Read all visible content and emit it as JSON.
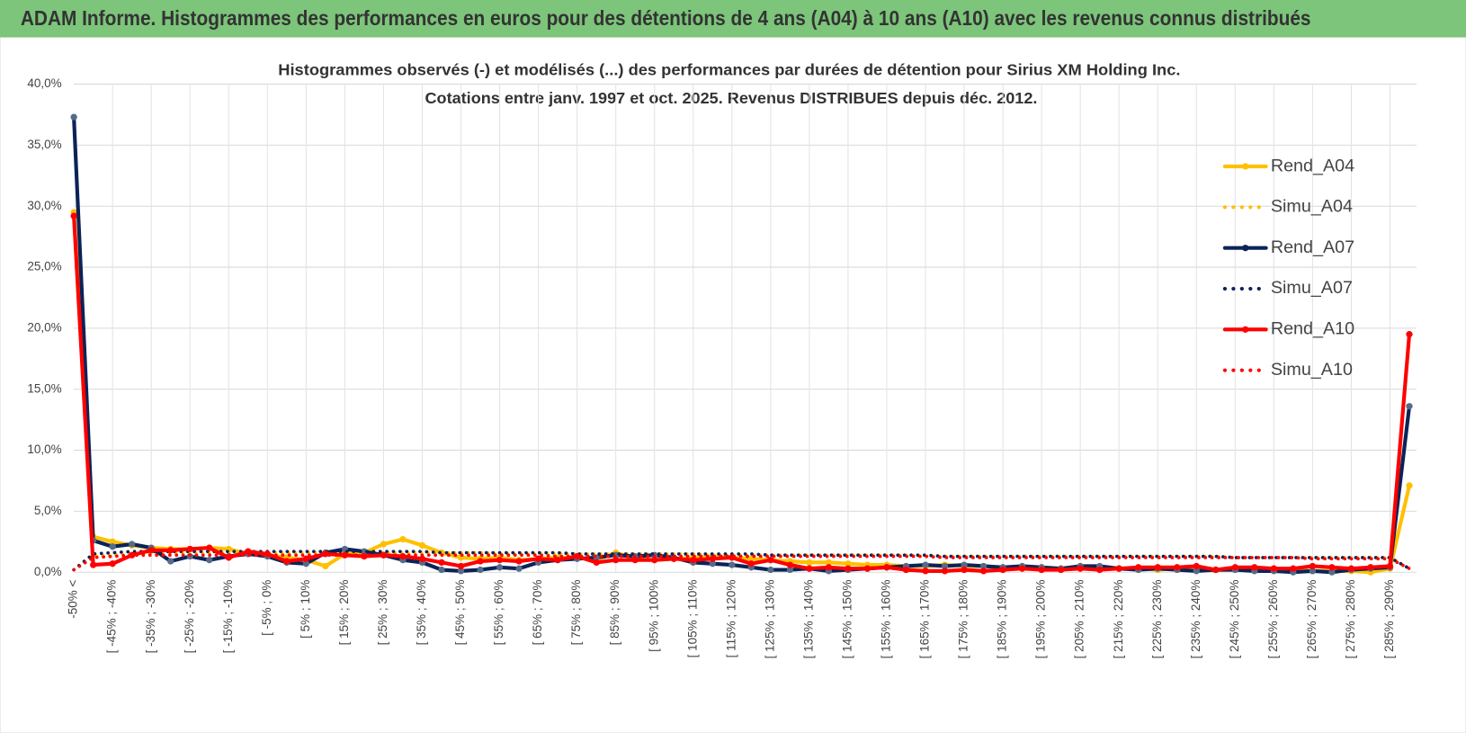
{
  "header": "ADAM Informe. Histogrammes des performances en euros pour des détentions de 4 ans (A04) à 10 ans (A10) avec les revenus connus distribués",
  "chart_data": {
    "type": "line",
    "title": "Histogrammes observés (-) et modélisés (...) des performances par durées de détention pour Sirius XM Holding Inc.",
    "subtitle": "Cotations entre janv. 1997 et oct. 2025.  Revenus DISTRIBUES depuis déc. 2012.",
    "categories": [
      "-50% <",
      null,
      "[ -45% ; -40%",
      null,
      "[ -35% ; -30%",
      null,
      "[ -25% ; -20%",
      null,
      "[ -15% ; -10%",
      null,
      "[ -5% ; 0%",
      null,
      "[ 5% ; 10%",
      null,
      "[ 15% ; 20%",
      null,
      "[ 25% ; 30%",
      null,
      "[ 35% ; 40%",
      null,
      "[ 45% ; 50%",
      null,
      "[ 55% ; 60%",
      null,
      "[ 65% ; 70%",
      null,
      "[ 75% ; 80%",
      null,
      "[ 85% ; 90%",
      null,
      "[ 95% ; 100%",
      null,
      "[ 105% ; 110%",
      null,
      "[ 115% ; 120%",
      null,
      "[ 125% ; 130%",
      null,
      "[ 135% ; 140%",
      null,
      "[ 145% ; 150%",
      null,
      "[ 155% ; 160%",
      null,
      "[ 165% ; 170%",
      null,
      "[ 175% ; 180%",
      null,
      "[ 185% ; 190%",
      null,
      "[ 195% ; 200%",
      null,
      "[ 205% ; 210%",
      null,
      "[ 215% ; 220%",
      null,
      "[ 225% ; 230%",
      null,
      "[ 235% ; 240%",
      null,
      "[ 245% ; 250%",
      null,
      "[ 255% ; 260%",
      null,
      "[ 265% ; 270%",
      null,
      "[ 275% ; 280%",
      null,
      "[ 285% ; 290%",
      null
    ],
    "ylim": [
      0,
      40
    ],
    "yticks": [
      {
        "value": 0,
        "label": "0,0%"
      },
      {
        "value": 5,
        "label": "5,0%"
      },
      {
        "value": 10,
        "label": "10,0%"
      },
      {
        "value": 15,
        "label": "15,0%"
      },
      {
        "value": 20,
        "label": "20,0%"
      },
      {
        "value": 25,
        "label": "25,0%"
      },
      {
        "value": 30,
        "label": "30,0%"
      },
      {
        "value": 35,
        "label": "35,0%"
      },
      {
        "value": 40,
        "label": "40,0%"
      }
    ],
    "grid": true,
    "legend": "right",
    "series": [
      {
        "name": "Rend_A04",
        "color": "#ffc000",
        "style": "solid",
        "marker": true,
        "values": [
          29.5,
          2.9,
          2.5,
          2.2,
          2.0,
          1.9,
          1.9,
          2.0,
          1.9,
          1.5,
          1.4,
          1.2,
          1.0,
          0.5,
          1.5,
          1.6,
          2.3,
          2.7,
          2.2,
          1.6,
          1.2,
          1.1,
          1.2,
          1.0,
          1.1,
          1.2,
          1.2,
          1.0,
          1.6,
          1.1,
          1.0,
          1.1,
          1.2,
          1.3,
          1.2,
          1.1,
          1.0,
          0.9,
          0.8,
          0.8,
          0.7,
          0.6,
          0.6,
          0.5,
          0.5,
          0.6,
          0.5,
          0.5,
          0.4,
          0.4,
          0.4,
          0.3,
          0.4,
          0.4,
          0.3,
          0.3,
          0.2,
          0.3,
          0.3,
          0.2,
          0.2,
          0.2,
          0.3,
          0.2,
          0.1,
          0.1,
          0.1,
          0.0,
          0.3,
          7.1
        ]
      },
      {
        "name": "Simu_A04",
        "color": "#ffc000",
        "style": "dotted",
        "marker": false,
        "values": [
          0.2,
          1.3,
          1.4,
          1.5,
          1.6,
          1.6,
          1.6,
          1.6,
          1.6,
          1.6,
          1.6,
          1.6,
          1.6,
          1.6,
          1.6,
          1.6,
          1.6,
          1.6,
          1.6,
          1.6,
          1.6,
          1.6,
          1.5,
          1.5,
          1.5,
          1.5,
          1.5,
          1.5,
          1.5,
          1.5,
          1.5,
          1.5,
          1.5,
          1.4,
          1.4,
          1.4,
          1.4,
          1.4,
          1.4,
          1.4,
          1.4,
          1.4,
          1.4,
          1.4,
          1.3,
          1.3,
          1.3,
          1.3,
          1.3,
          1.3,
          1.3,
          1.3,
          1.3,
          1.3,
          1.3,
          1.3,
          1.3,
          1.3,
          1.3,
          1.3,
          1.2,
          1.2,
          1.2,
          1.2,
          1.2,
          1.2,
          1.2,
          1.2,
          1.2,
          0.3
        ]
      },
      {
        "name": "Rend_A07",
        "color": "#0b2357",
        "style": "solid",
        "marker": true,
        "values": [
          37.3,
          2.6,
          2.1,
          2.3,
          2.0,
          0.9,
          1.3,
          1.0,
          1.3,
          1.5,
          1.3,
          0.8,
          0.7,
          1.6,
          1.9,
          1.7,
          1.4,
          1.0,
          0.8,
          0.2,
          0.1,
          0.2,
          0.4,
          0.3,
          0.8,
          1.0,
          1.1,
          1.2,
          1.4,
          1.3,
          1.4,
          1.2,
          0.8,
          0.7,
          0.6,
          0.4,
          0.2,
          0.2,
          0.3,
          0.1,
          0.2,
          0.3,
          0.4,
          0.5,
          0.6,
          0.5,
          0.6,
          0.5,
          0.4,
          0.5,
          0.4,
          0.3,
          0.5,
          0.5,
          0.3,
          0.2,
          0.3,
          0.2,
          0.1,
          0.2,
          0.2,
          0.1,
          0.1,
          0.0,
          0.1,
          0.0,
          0.2,
          0.3,
          0.4,
          13.6
        ]
      },
      {
        "name": "Simu_A07",
        "color": "#0b2357",
        "style": "dotted",
        "marker": false,
        "values": [
          0.2,
          1.5,
          1.6,
          1.7,
          1.7,
          1.7,
          1.7,
          1.7,
          1.7,
          1.7,
          1.7,
          1.7,
          1.7,
          1.7,
          1.7,
          1.7,
          1.7,
          1.7,
          1.7,
          1.6,
          1.6,
          1.6,
          1.6,
          1.6,
          1.6,
          1.6,
          1.5,
          1.5,
          1.5,
          1.5,
          1.5,
          1.5,
          1.5,
          1.5,
          1.5,
          1.5,
          1.4,
          1.4,
          1.4,
          1.4,
          1.4,
          1.4,
          1.4,
          1.4,
          1.4,
          1.3,
          1.3,
          1.3,
          1.3,
          1.3,
          1.3,
          1.3,
          1.3,
          1.3,
          1.3,
          1.3,
          1.3,
          1.3,
          1.3,
          1.3,
          1.2,
          1.2,
          1.2,
          1.2,
          1.2,
          1.2,
          1.2,
          1.2,
          1.2,
          0.3
        ]
      },
      {
        "name": "Rend_A10",
        "color": "#ff0000",
        "style": "solid",
        "marker": true,
        "values": [
          29.2,
          0.6,
          0.7,
          1.4,
          1.8,
          1.8,
          1.9,
          2.0,
          1.2,
          1.7,
          1.5,
          0.9,
          1.1,
          1.5,
          1.4,
          1.3,
          1.4,
          1.3,
          1.1,
          0.8,
          0.5,
          0.9,
          1.0,
          0.9,
          1.1,
          1.0,
          1.3,
          0.8,
          1.0,
          1.0,
          1.0,
          1.1,
          1.0,
          1.1,
          1.2,
          0.7,
          1.0,
          0.6,
          0.3,
          0.4,
          0.3,
          0.3,
          0.4,
          0.2,
          0.1,
          0.1,
          0.2,
          0.1,
          0.2,
          0.3,
          0.2,
          0.2,
          0.3,
          0.2,
          0.3,
          0.4,
          0.4,
          0.4,
          0.5,
          0.2,
          0.4,
          0.4,
          0.3,
          0.3,
          0.5,
          0.4,
          0.3,
          0.4,
          0.5,
          19.5
        ]
      },
      {
        "name": "Simu_A10",
        "color": "#ff0000",
        "style": "dotted",
        "marker": false,
        "values": [
          0.2,
          1.2,
          1.3,
          1.4,
          1.4,
          1.4,
          1.4,
          1.4,
          1.4,
          1.4,
          1.4,
          1.4,
          1.4,
          1.4,
          1.4,
          1.4,
          1.4,
          1.4,
          1.4,
          1.4,
          1.4,
          1.4,
          1.4,
          1.4,
          1.4,
          1.3,
          1.3,
          1.3,
          1.3,
          1.3,
          1.3,
          1.3,
          1.3,
          1.3,
          1.3,
          1.3,
          1.3,
          1.3,
          1.3,
          1.3,
          1.3,
          1.3,
          1.3,
          1.3,
          1.3,
          1.2,
          1.2,
          1.2,
          1.2,
          1.2,
          1.2,
          1.2,
          1.2,
          1.2,
          1.2,
          1.2,
          1.2,
          1.2,
          1.2,
          1.2,
          1.2,
          1.2,
          1.2,
          1.2,
          1.1,
          1.1,
          1.1,
          1.1,
          1.1,
          0.3
        ]
      }
    ]
  }
}
